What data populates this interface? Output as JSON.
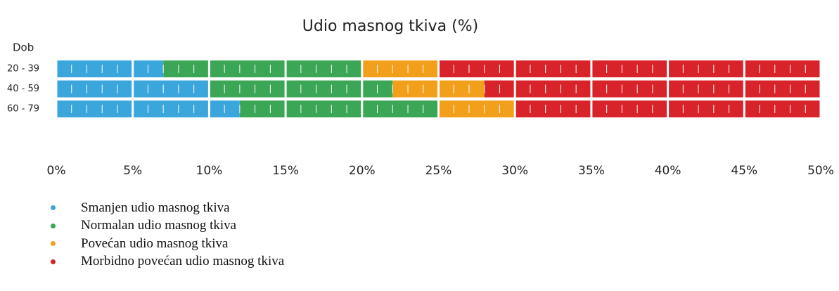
{
  "chart_data": {
    "type": "stacked-barh",
    "title": "Udio masnog tkiva (%)",
    "y_label": "Dob",
    "categories": [
      "20 - 39",
      "40 - 59",
      "60 - 79"
    ],
    "series": [
      {
        "name": "Smanjen udio masnog tkiva",
        "color": "#3aa6dc",
        "values": [
          7,
          10,
          12
        ]
      },
      {
        "name": "Normalan udio masnog tkiva",
        "color": "#3ba655",
        "values": [
          13,
          12,
          13
        ]
      },
      {
        "name": "Povećan udio masnog tkiva",
        "color": "#f2a01c",
        "values": [
          5,
          6,
          5
        ]
      },
      {
        "name": "Morbidno povećan udio masnog tkiva",
        "color": "#d8232a",
        "values": [
          25,
          22,
          20
        ]
      }
    ],
    "xlim": [
      0,
      50
    ],
    "xticks": [
      {
        "value": 0,
        "label": "0%"
      },
      {
        "value": 5,
        "label": "5%"
      },
      {
        "value": 10,
        "label": "10%"
      },
      {
        "value": 15,
        "label": "15%"
      },
      {
        "value": 20,
        "label": "20%"
      },
      {
        "value": 25,
        "label": "25%"
      },
      {
        "value": 30,
        "label": "30%"
      },
      {
        "value": 35,
        "label": "35%"
      },
      {
        "value": 40,
        "label": "40%"
      },
      {
        "value": 45,
        "label": "45%"
      },
      {
        "value": 50,
        "label": "50%"
      }
    ]
  }
}
